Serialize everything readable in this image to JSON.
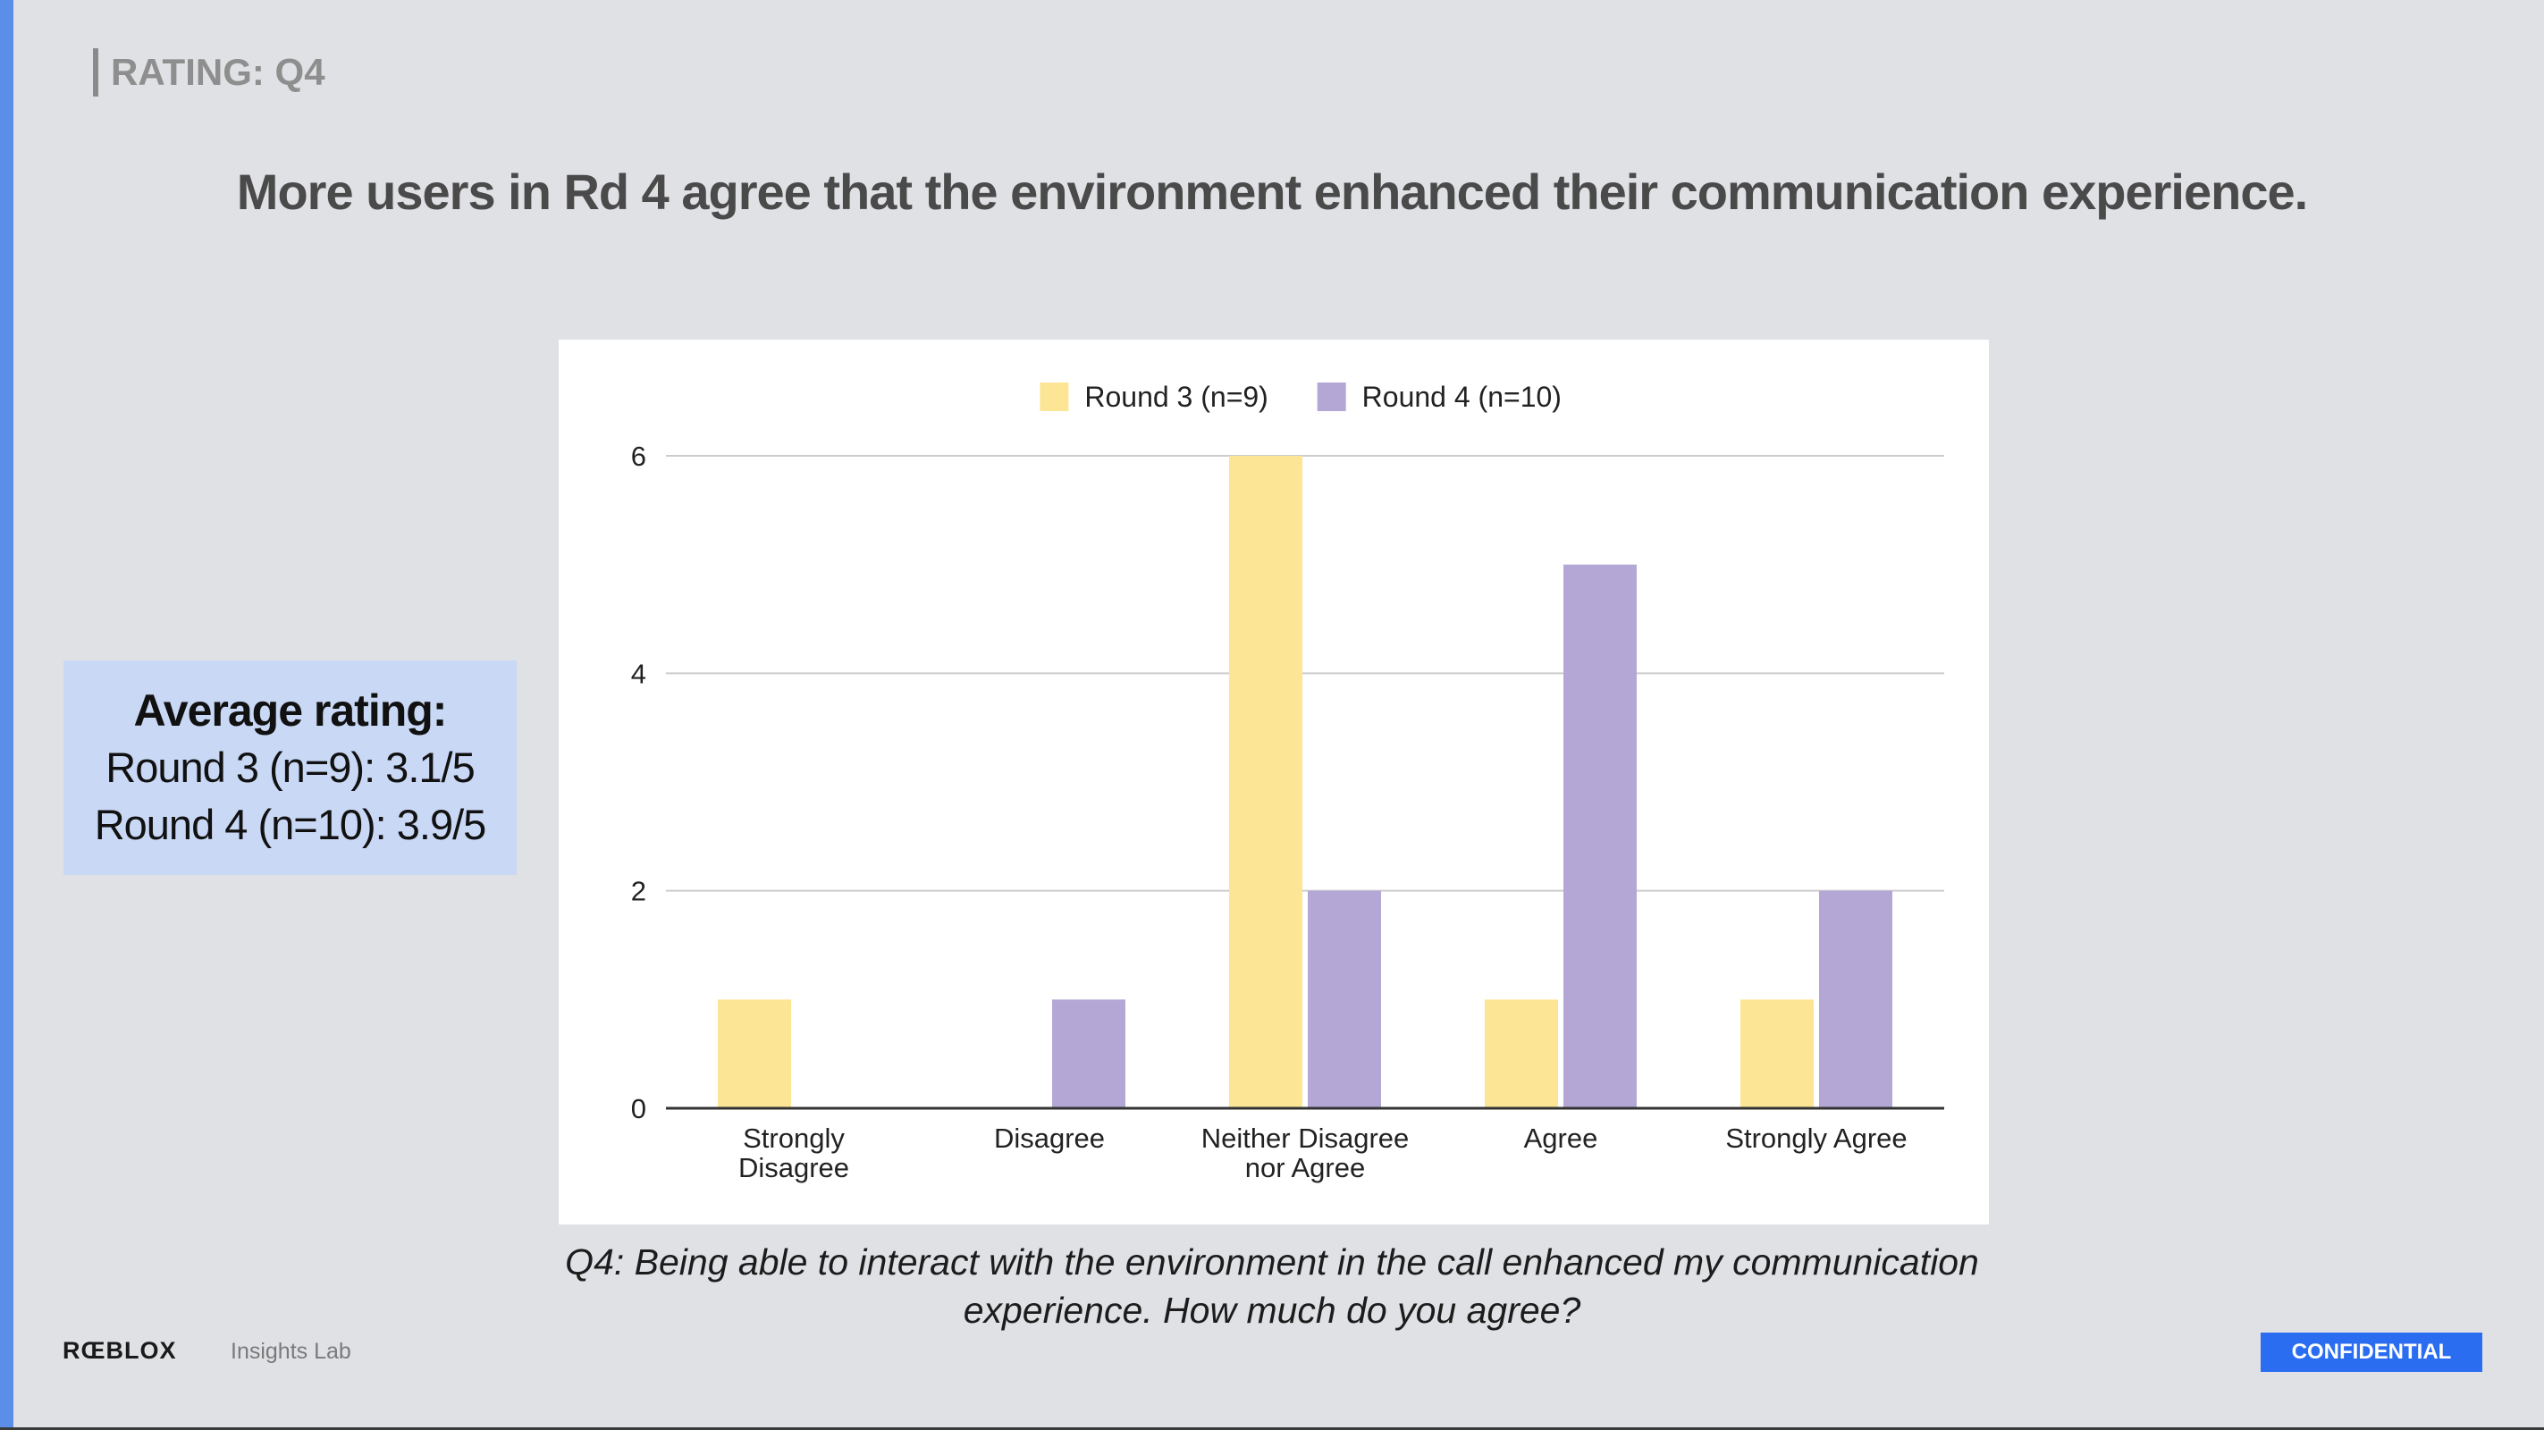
{
  "slide": {
    "section_label": "RATING: Q4",
    "headline": "More users in Rd 4 agree that the environment enhanced their communication experience.",
    "caption_line1": "Q4: Being able to interact with the environment in the call enhanced my communication",
    "caption_line2": "experience. How much do you agree?"
  },
  "average_box": {
    "title": "Average rating:",
    "round3": "Round 3 (n=9): 3.1/5",
    "round4": "Round 4 (n=10): 3.9/5"
  },
  "footer": {
    "logo": "RŒBLOX",
    "team": "Insights Lab",
    "confidential": "CONFIDENTIAL"
  },
  "colors": {
    "round3": "#fde596",
    "round4": "#b4a7d6",
    "accent": "#5b8ee9",
    "confidential": "#2b6df0"
  },
  "chart_data": {
    "type": "bar",
    "categories": [
      [
        "Strongly",
        "Disagree"
      ],
      [
        "Disagree"
      ],
      [
        "Neither Disagree",
        "nor Agree"
      ],
      [
        "Agree"
      ],
      [
        "Strongly Agree"
      ]
    ],
    "series": [
      {
        "name": "Round 3 (n=9)",
        "values": [
          1,
          0,
          6,
          1,
          1
        ],
        "color": "#fde596"
      },
      {
        "name": "Round 4 (n=10)",
        "values": [
          0,
          1,
          2,
          5,
          2
        ],
        "color": "#b4a7d6"
      }
    ],
    "ylim": [
      0,
      6
    ],
    "yticks": [
      0,
      2,
      4,
      6
    ],
    "grid": true,
    "legend_position": "top"
  }
}
